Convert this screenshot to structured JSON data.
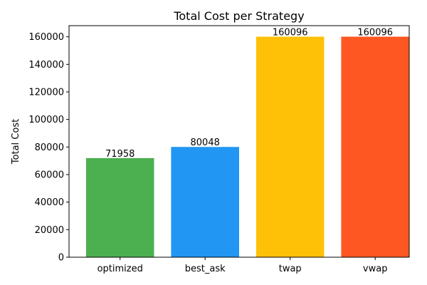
{
  "chart_data": {
    "type": "bar",
    "title": "Total Cost per Strategy",
    "xlabel": "",
    "ylabel": "Total Cost",
    "categories": [
      "optimized",
      "best_ask",
      "twap",
      "vwap"
    ],
    "values": [
      71958,
      80048,
      160096,
      160096
    ],
    "data_labels": [
      "71958",
      "80048",
      "160096",
      "160096"
    ],
    "colors": [
      "#4caf50",
      "#2196f3",
      "#ffc107",
      "#ff5722"
    ],
    "ylim": [
      0,
      168100
    ],
    "yticks": [
      0,
      20000,
      40000,
      60000,
      80000,
      100000,
      120000,
      140000,
      160000
    ],
    "grid": false,
    "legend": "none"
  }
}
